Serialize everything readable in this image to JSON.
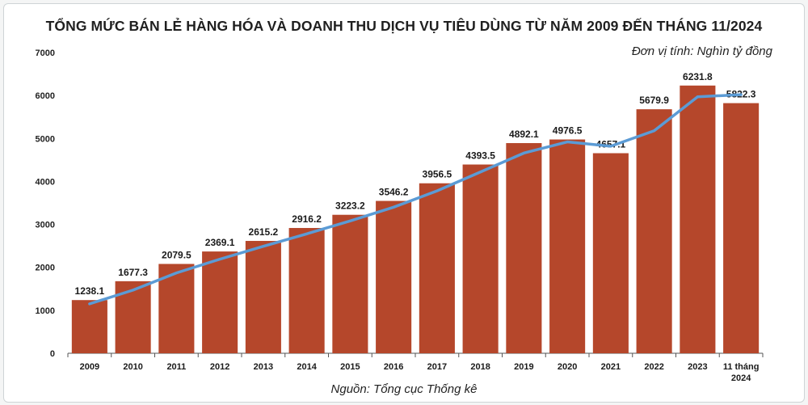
{
  "title": "TỔNG MỨC BÁN LẺ HÀNG HÓA VÀ DOANH THU DỊCH VỤ TIÊU DÙNG TỪ NĂM 2009 ĐẾN THÁNG 11/2024",
  "unit_note": "Đơn vị tính: Nghìn tỷ đồng",
  "source_note": "Nguồn: Tổng cục Thống kê",
  "colors": {
    "bar": "#b5472b",
    "line": "#5b9bd5"
  },
  "chart_data": {
    "type": "bar",
    "categories": [
      "2009",
      "2010",
      "2011",
      "2012",
      "2013",
      "2014",
      "2015",
      "2016",
      "2017",
      "2018",
      "2019",
      "2020",
      "2021",
      "2022",
      "2023",
      "11 tháng 2024"
    ],
    "values": [
      1238.1,
      1677.3,
      2079.5,
      2369.1,
      2615.2,
      2916.2,
      3223.2,
      3546.2,
      3956.5,
      4393.5,
      4892.1,
      4976.5,
      4657.1,
      5679.9,
      6231.8,
      5822.3
    ],
    "data_labels": [
      "1238.1",
      "1677.3",
      "2079.5",
      "2369.1",
      "2615.2",
      "2916.2",
      "3223.2",
      "3546.2",
      "3956.5",
      "4393.5",
      "4892.1",
      "4976.5",
      "4657.1",
      "5679.9",
      "6231.8",
      "5822.3"
    ],
    "trend_line_values": [
      1150,
      1470,
      1870,
      2190,
      2490,
      2780,
      3080,
      3400,
      3780,
      4220,
      4660,
      4920,
      4820,
      5180,
      5970,
      6020
    ],
    "yticks": [
      0,
      1000,
      2000,
      3000,
      4000,
      5000,
      6000,
      7000
    ],
    "ylim": [
      0,
      7000
    ],
    "grid": false,
    "legend": false
  }
}
